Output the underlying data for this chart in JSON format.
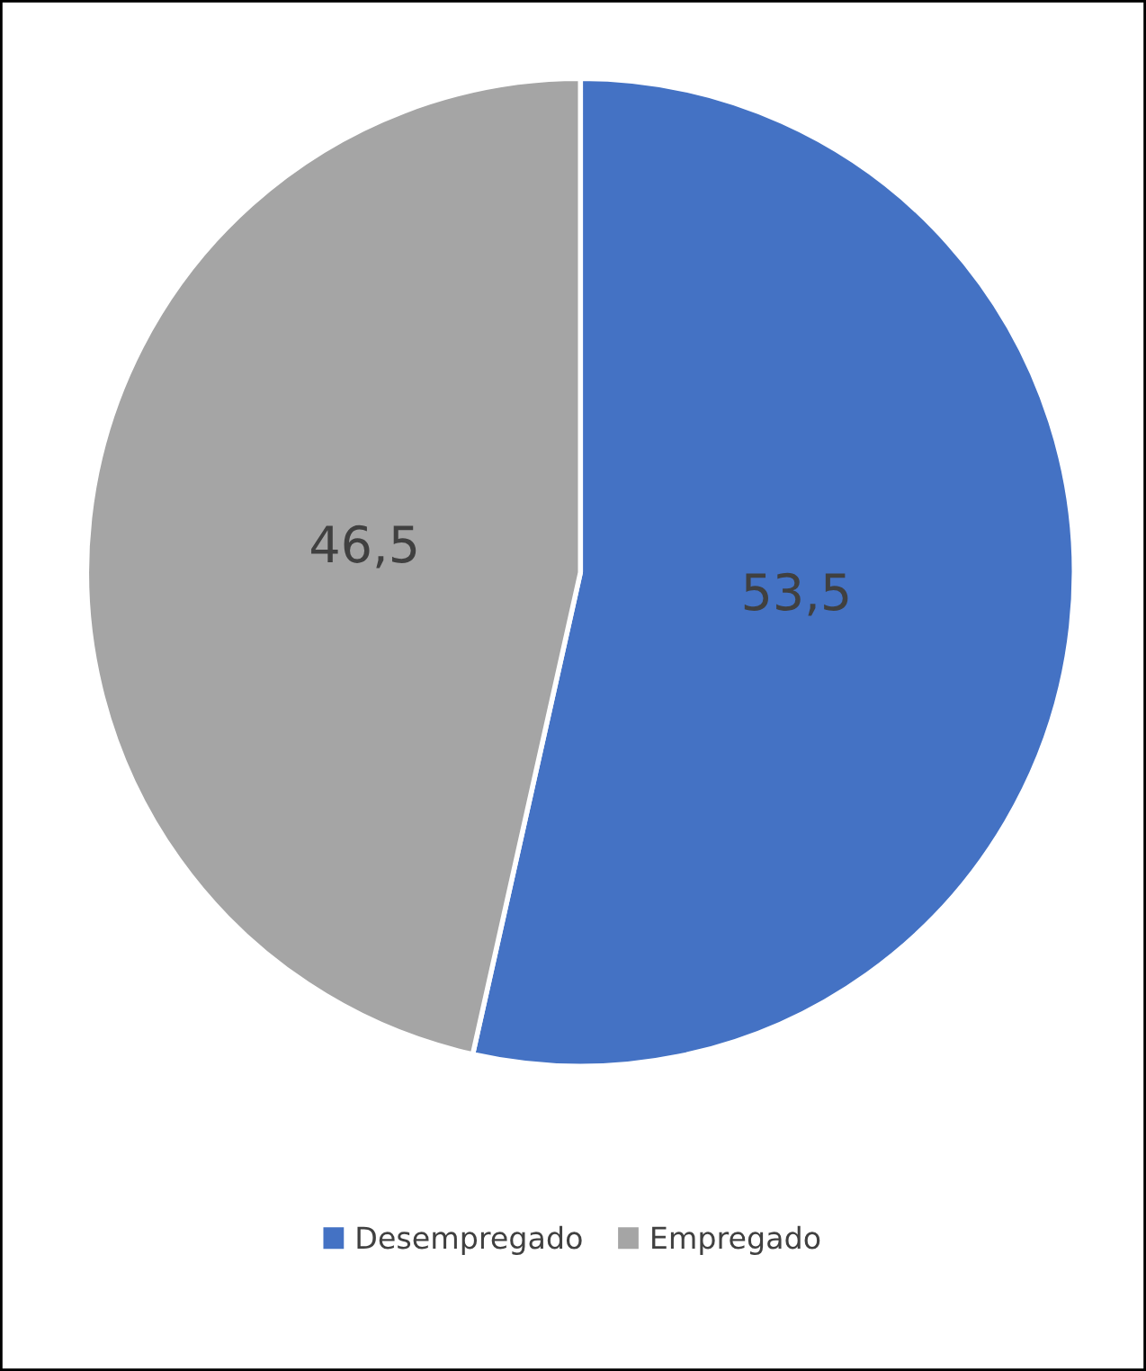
{
  "chart_data": {
    "type": "pie",
    "categories": [
      "Desempregado",
      "Empregado"
    ],
    "values": [
      53.5,
      46.5
    ],
    "colors": [
      "#4472c4",
      "#a5a5a5"
    ],
    "value_labels": [
      "53,5",
      "46,5"
    ],
    "legend": "bottom"
  }
}
